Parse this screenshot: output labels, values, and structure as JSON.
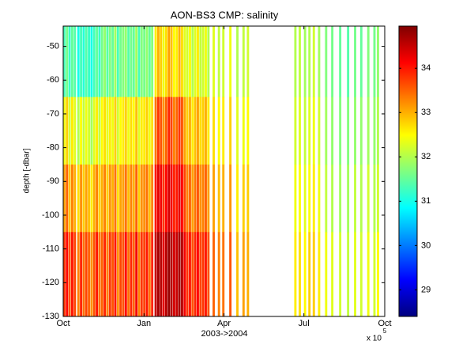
{
  "chart_data": {
    "type": "heatmap",
    "title": "AON-BS3 CMP: salinity",
    "xlabel": "2003->2004",
    "ylabel": "depth [-dbar]",
    "x_multiplier": "x 10",
    "x_multiplier_exp": "5",
    "colormap": "jet",
    "xlim": [
      0,
      366
    ],
    "xticks": [
      {
        "value": 0,
        "label": "Oct"
      },
      {
        "value": 92,
        "label": "Jan"
      },
      {
        "value": 183,
        "label": "Apr"
      },
      {
        "value": 274,
        "label": "Jul"
      },
      {
        "value": 366,
        "label": "Oct"
      }
    ],
    "ylim": [
      -130,
      -44
    ],
    "yticks": [
      -50,
      -60,
      -70,
      -80,
      -90,
      -100,
      -110,
      -120,
      -130
    ],
    "clim": [
      28.4,
      34.95
    ],
    "cticks": [
      29,
      30,
      31,
      32,
      33,
      34
    ],
    "y_edges": [
      -44,
      -65,
      -85,
      -105,
      -130
    ],
    "x": [
      0,
      3,
      6,
      9,
      12,
      16,
      19,
      22,
      25,
      28,
      31,
      34,
      37,
      40,
      43,
      46,
      49,
      52,
      55,
      58,
      61,
      64,
      67,
      70,
      73,
      76,
      79,
      82,
      85,
      88,
      91,
      94,
      97,
      100,
      104,
      107,
      110,
      113,
      116,
      119,
      122,
      125,
      128,
      131,
      134,
      137,
      140,
      143,
      146,
      149,
      152,
      155,
      158,
      161,
      164,
      170,
      176,
      181,
      189,
      197,
      204,
      209,
      263,
      268,
      274,
      279,
      284,
      290,
      298,
      305,
      314,
      323,
      331,
      338,
      346,
      353,
      357
    ],
    "values": [
      [
        31.3,
        32.4,
        33.1,
        33.8
      ],
      [
        31.6,
        32.8,
        33.5,
        34.1
      ],
      [
        31.2,
        32.2,
        32.9,
        33.6
      ],
      [
        31.5,
        32.6,
        33.3,
        34.0
      ],
      [
        31.4,
        32.3,
        33.0,
        33.7
      ],
      [
        31.0,
        32.0,
        32.7,
        33.3
      ],
      [
        31.3,
        32.5,
        33.2,
        33.9
      ],
      [
        31.1,
        32.1,
        32.8,
        33.4
      ],
      [
        31.4,
        32.4,
        33.1,
        33.7
      ],
      [
        31.2,
        32.2,
        32.9,
        33.5
      ],
      [
        31.0,
        31.9,
        32.6,
        33.2
      ],
      [
        31.3,
        32.3,
        33.0,
        33.6
      ],
      [
        31.5,
        32.6,
        33.3,
        34.0
      ],
      [
        31.2,
        32.1,
        32.8,
        33.4
      ],
      [
        31.6,
        32.5,
        33.0,
        33.5
      ],
      [
        31.8,
        32.7,
        33.3,
        33.9
      ],
      [
        31.4,
        32.3,
        32.8,
        33.3
      ],
      [
        31.7,
        32.6,
        33.2,
        33.8
      ],
      [
        31.5,
        32.4,
        33.0,
        33.6
      ],
      [
        31.9,
        32.8,
        33.4,
        34.0
      ],
      [
        31.3,
        32.2,
        32.7,
        33.2
      ],
      [
        31.6,
        32.5,
        33.1,
        33.7
      ],
      [
        31.7,
        32.6,
        33.1,
        33.6
      ],
      [
        31.8,
        32.8,
        33.4,
        34.1
      ],
      [
        31.4,
        32.4,
        32.9,
        33.4
      ],
      [
        31.6,
        32.7,
        33.3,
        33.9
      ],
      [
        31.5,
        32.5,
        33.0,
        33.5
      ],
      [
        31.9,
        32.9,
        33.5,
        34.2
      ],
      [
        31.3,
        32.3,
        32.8,
        33.3
      ],
      [
        31.7,
        32.6,
        33.2,
        33.8
      ],
      [
        31.6,
        32.6,
        33.2,
        33.7
      ],
      [
        31.8,
        32.8,
        33.4,
        34.0
      ],
      [
        31.5,
        32.4,
        32.9,
        33.4
      ],
      [
        31.7,
        32.7,
        33.3,
        33.9
      ],
      [
        32.6,
        33.4,
        34.0,
        34.5
      ],
      [
        33.0,
        33.8,
        34.3,
        34.7
      ],
      [
        32.8,
        33.6,
        34.2,
        34.6
      ],
      [
        32.4,
        33.2,
        33.8,
        34.3
      ],
      [
        32.7,
        33.5,
        34.1,
        34.6
      ],
      [
        33.1,
        33.9,
        34.4,
        34.8
      ],
      [
        32.9,
        33.7,
        34.2,
        34.6
      ],
      [
        32.5,
        33.3,
        33.9,
        34.4
      ],
      [
        32.6,
        33.5,
        34.0,
        34.5
      ],
      [
        33.0,
        33.8,
        34.3,
        34.7
      ],
      [
        32.7,
        33.6,
        34.1,
        34.6
      ],
      [
        32.3,
        33.1,
        33.7,
        34.2
      ],
      [
        32.2,
        32.8,
        33.3,
        33.8
      ],
      [
        32.5,
        33.0,
        33.5,
        34.0
      ],
      [
        32.0,
        32.6,
        33.1,
        33.6
      ],
      [
        32.3,
        32.9,
        33.4,
        33.9
      ],
      [
        32.6,
        33.1,
        33.6,
        34.1
      ],
      [
        32.1,
        32.7,
        33.2,
        33.7
      ],
      [
        32.2,
        32.8,
        33.3,
        33.8
      ],
      [
        32.4,
        33.0,
        33.5,
        34.0
      ],
      [
        32.0,
        32.6,
        33.1,
        33.6
      ],
      [
        32.3,
        32.7,
        33.1,
        33.5
      ],
      [
        32.1,
        32.5,
        32.9,
        33.3
      ],
      [
        32.2,
        32.6,
        33.0,
        33.4
      ],
      [
        32.4,
        32.8,
        33.2,
        33.6
      ],
      [
        32.0,
        32.3,
        32.6,
        32.9
      ],
      [
        32.1,
        32.4,
        32.8,
        33.1
      ],
      [
        32.2,
        32.5,
        32.8,
        33.0
      ],
      [
        32.0,
        32.2,
        32.4,
        32.6
      ],
      [
        32.1,
        32.3,
        32.5,
        32.7
      ],
      [
        31.9,
        32.1,
        32.3,
        32.5
      ],
      [
        32.0,
        32.3,
        32.5,
        32.8
      ],
      [
        32.2,
        32.4,
        32.6,
        32.8
      ],
      [
        31.9,
        32.2,
        32.4,
        32.6
      ],
      [
        31.7,
        31.9,
        32.1,
        32.4
      ],
      [
        31.6,
        31.8,
        32.0,
        32.3
      ],
      [
        31.5,
        31.7,
        31.9,
        32.2
      ],
      [
        31.4,
        31.7,
        31.9,
        32.1
      ],
      [
        31.6,
        31.8,
        32.1,
        32.3
      ],
      [
        31.5,
        31.8,
        32.0,
        32.2
      ],
      [
        31.7,
        31.9,
        32.2,
        32.4
      ],
      [
        31.6,
        31.8,
        32.0,
        32.2
      ],
      [
        31.8,
        32.0,
        32.2,
        32.5
      ]
    ]
  }
}
